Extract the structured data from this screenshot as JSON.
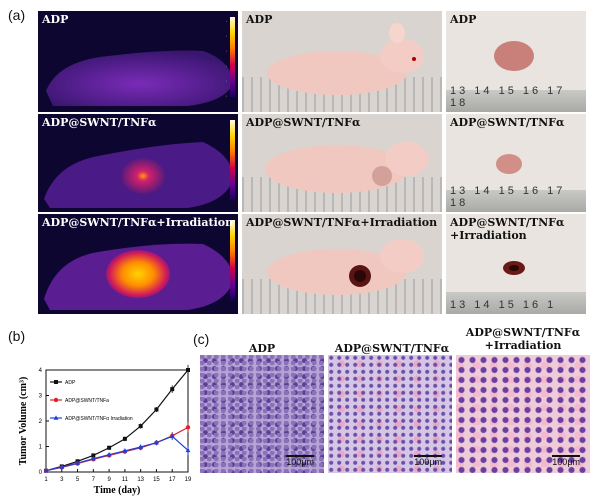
{
  "panel_a": {
    "label": "(a)",
    "rows": [
      {
        "thermal_caption": "ADP",
        "photo_caption": "ADP",
        "tumor_caption": "ADP",
        "ruler": "13 14 15 16 17 18"
      },
      {
        "thermal_caption": "ADP@SWNT/TNFα",
        "photo_caption": "ADP@SWNT/TNFα",
        "tumor_caption": "ADP@SWNT/TNFα",
        "ruler": "13 14 15 16 17 18"
      },
      {
        "thermal_caption": "ADP@SWNT/TNFα+Irradiation",
        "photo_caption": "ADP@SWNT/TNFα+Irradiation",
        "tumor_caption": "ADP@SWNT/TNFα\n+Irradiation",
        "ruler": "13 14 15 16 1"
      }
    ]
  },
  "panel_b": {
    "label": "(b)"
  },
  "panel_c": {
    "label": "(c)",
    "titles": [
      "ADP",
      "ADP@SWNT/TNFα",
      "ADP@SWNT/TNFα\n+Irradiation"
    ],
    "scalebar": "100μm"
  },
  "colors": {
    "adp": "#111111",
    "adp_swnt": "#e0202a",
    "adp_swnt_irr": "#1f3fd6"
  },
  "chart_data": {
    "type": "line",
    "xlabel": "Time (day)",
    "ylabel": "Tumor Volume (cm³)",
    "xlim": [
      1,
      19
    ],
    "ylim": [
      0,
      4
    ],
    "xticks": [
      1,
      3,
      5,
      7,
      9,
      11,
      13,
      15,
      17,
      19
    ],
    "yticks": [
      0,
      1,
      2,
      3,
      4
    ],
    "legend_position": "top-left",
    "series": [
      {
        "name": "ADP",
        "color": "#111111",
        "marker": "square",
        "x": [
          1,
          3,
          5,
          7,
          9,
          11,
          13,
          15,
          17,
          19
        ],
        "y": [
          0.05,
          0.22,
          0.42,
          0.65,
          0.95,
          1.3,
          1.8,
          2.45,
          3.25,
          4.0
        ]
      },
      {
        "name": "ADP@SWNT/TNFa",
        "color": "#e0202a",
        "marker": "circle",
        "x": [
          1,
          3,
          5,
          7,
          9,
          11,
          13,
          15,
          17,
          19
        ],
        "y": [
          0.05,
          0.18,
          0.33,
          0.5,
          0.65,
          0.8,
          0.95,
          1.15,
          1.42,
          1.75
        ]
      },
      {
        "name": "ADP@SWNT/TNFα Irradiation",
        "color": "#1f3fd6",
        "marker": "triangle",
        "x": [
          1,
          3,
          5,
          7,
          9,
          11,
          13,
          15,
          17,
          19
        ],
        "y": [
          0.05,
          0.2,
          0.35,
          0.52,
          0.68,
          0.83,
          0.98,
          1.15,
          1.4,
          0.85
        ]
      }
    ],
    "error_bars": [
      0.05,
      0.06,
      0.07,
      0.08,
      0.08,
      0.09,
      0.1,
      0.1,
      0.15,
      0.2
    ]
  }
}
